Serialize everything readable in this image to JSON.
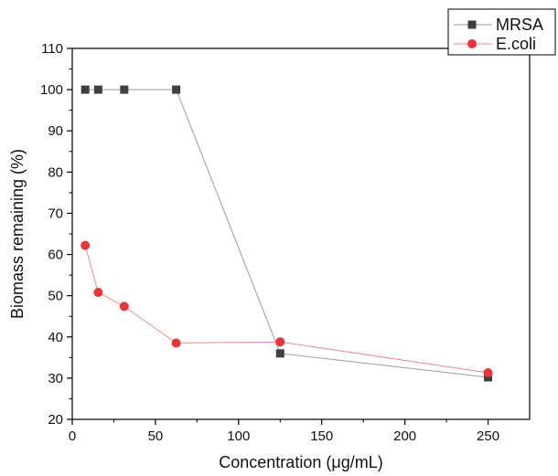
{
  "chart_data": {
    "type": "line",
    "title": "",
    "xlabel": "Concentration (μg/mL)",
    "ylabel": "Biomass remaining (%)",
    "xlim": [
      0,
      275
    ],
    "ylim": [
      20,
      110
    ],
    "xticks": [
      "0",
      "50",
      "100",
      "150",
      "200",
      "250"
    ],
    "yticks": [
      "20",
      "30",
      "40",
      "50",
      "60",
      "70",
      "80",
      "90",
      "100",
      "110"
    ],
    "grid": false,
    "legend_position": "top-right",
    "series": [
      {
        "name": "MRSA",
        "marker": "square",
        "color": "#404040",
        "line_color": "#9a9a9a",
        "points": [
          {
            "x": 7.8,
            "y": 100
          },
          {
            "x": 15.6,
            "y": 100
          },
          {
            "x": 31.25,
            "y": 100
          },
          {
            "x": 62.5,
            "y": 100
          },
          {
            "x": 125,
            "y": 36
          },
          {
            "x": 250,
            "y": 30.2
          }
        ]
      },
      {
        "name": "E.coli",
        "marker": "circle",
        "color": "#e8343a",
        "line_color": "#f08a8a",
        "points": [
          {
            "x": 7.8,
            "y": 62.2
          },
          {
            "x": 15.6,
            "y": 50.8
          },
          {
            "x": 31.25,
            "y": 47.4
          },
          {
            "x": 62.5,
            "y": 38.5
          },
          {
            "x": 125,
            "y": 38.8
          },
          {
            "x": 250,
            "y": 31.3
          }
        ]
      }
    ]
  }
}
